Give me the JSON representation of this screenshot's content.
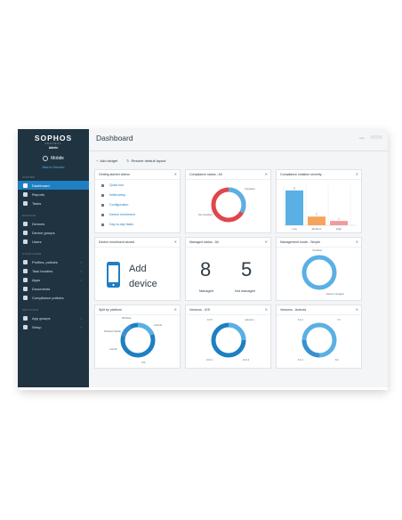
{
  "brand": {
    "name": "SOPHOS",
    "central": "CENTRAL",
    "role": "Admin"
  },
  "product": "Mobile",
  "back_link": "Back to Overview",
  "sidebar": {
    "sections": [
      {
        "label": "INFORM",
        "items": [
          {
            "label": "Dashboard",
            "active": true
          },
          {
            "label": "Reports"
          },
          {
            "label": "Tasks"
          }
        ]
      },
      {
        "label": "MANAGE",
        "items": [
          {
            "label": "Devices"
          },
          {
            "label": "Device groups"
          },
          {
            "label": "Users"
          }
        ]
      },
      {
        "label": "CONFIGURE",
        "items": [
          {
            "label": "Profiles, policies",
            "chevron": true
          },
          {
            "label": "Task bundles",
            "chevron": true
          },
          {
            "label": "Apps",
            "chevron": true
          },
          {
            "label": "Documents"
          },
          {
            "label": "Compliance policies"
          }
        ]
      },
      {
        "label": "SETTINGS",
        "items": [
          {
            "label": "App groups",
            "chevron": true
          },
          {
            "label": "Setup",
            "chevron": true
          }
        ]
      }
    ]
  },
  "header": {
    "title": "Dashboard",
    "help": "Help"
  },
  "toolbar": {
    "add_widget": "Add widget",
    "restore": "Restore default layout"
  },
  "widgets": {
    "videos": {
      "title": "Getting started videos",
      "items": [
        "Quick tour",
        "Initial setup",
        "Configuration",
        "Device enrollment",
        "Day-to-day tasks"
      ]
    },
    "compliance": {
      "title": "Compliance status - All",
      "labels": {
        "compliant": "Compliant",
        "not_compliant": "Not compliant"
      }
    },
    "severity": {
      "title": "Compliance violation severity",
      "bars": [
        {
          "label": "Low",
          "value": 8
        },
        {
          "label": "Medium",
          "value": 2
        },
        {
          "label": "High",
          "value": 1
        }
      ]
    },
    "enrollment": {
      "title": "Device enrollment wizard",
      "text1": "Add",
      "text2": "device"
    },
    "managed": {
      "title": "Managed status - All",
      "managed_value": "8",
      "managed_label": "Managed",
      "unmanaged_value": "5",
      "unmanaged_label": "Not managed"
    },
    "mgmt_mode": {
      "title": "Management mode - Simple",
      "labels": {
        "container": "Container",
        "device": "Device managed"
      }
    },
    "platform": {
      "title": "Split by platform",
      "labels": {
        "windows": "Windows",
        "android": "Android",
        "windows_mobile": "Windows Mobile",
        "macos": "macOS",
        "ios": "iOS"
      }
    },
    "ios_versions": {
      "title": "Versions - iOS",
      "labels": {
        "a": "9.3.5",
        "b": "unknown",
        "c": "10.0.1",
        "d": "10.3.2"
      }
    },
    "android_versions": {
      "title": "Versions - Android",
      "labels": {
        "a": "6.0.1",
        "b": "7.0",
        "c": "5.0.1",
        "d": "8.0"
      }
    }
  },
  "colors": {
    "sidebar": "#1f3341",
    "accent": "#1e7fc2",
    "ring_light": "#5ab0e4",
    "ring_dark": "#1e7fc2",
    "red": "#e0464b",
    "orange": "#f5a45c",
    "pink": "#f29a9c",
    "blue_bar": "#5ab0e4"
  }
}
